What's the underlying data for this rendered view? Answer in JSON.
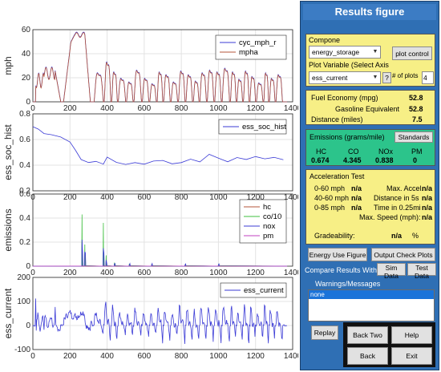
{
  "window": {
    "title": "Results figure"
  },
  "chart_data": [
    {
      "type": "line",
      "ylabel": "mph",
      "xlim": [
        0,
        1400
      ],
      "ylim": [
        0,
        60
      ],
      "xticks": [
        "0",
        "200",
        "400",
        "600",
        "800",
        "1000",
        "1200",
        "1400"
      ],
      "yticks": [
        "0",
        "20",
        "40",
        "60"
      ],
      "legend": [
        "cyc_mph_r",
        "mpha"
      ],
      "legend_position": "top-right",
      "grid": true,
      "series": [
        {
          "name": "cyc_mph_r",
          "color": "#3b3bd6"
        },
        {
          "name": "mpha",
          "color": "#b5553a"
        }
      ]
    },
    {
      "type": "line",
      "ylabel": "ess_soc_hist",
      "xlim": [
        0,
        1400
      ],
      "ylim": [
        0.2,
        0.8
      ],
      "xticks": [
        "0",
        "200",
        "400",
        "600",
        "800",
        "1000",
        "1200",
        "1400"
      ],
      "yticks": [
        "0.2",
        "0.4",
        "0.6",
        "0.8"
      ],
      "legend": [
        "ess_soc_hist"
      ],
      "legend_position": "top-right",
      "grid": true,
      "series": [
        {
          "name": "ess_soc_hist",
          "color": "#3b3bd6",
          "x": [
            0,
            30,
            60,
            100,
            150,
            200,
            230,
            260,
            300,
            340,
            380,
            400,
            450,
            500,
            550,
            600,
            650,
            700,
            750,
            800,
            850,
            900,
            950,
            1000,
            1050,
            1100,
            1150,
            1200,
            1250,
            1300,
            1350
          ],
          "y": [
            0.7,
            0.68,
            0.65,
            0.64,
            0.62,
            0.58,
            0.52,
            0.44,
            0.42,
            0.43,
            0.41,
            0.46,
            0.42,
            0.41,
            0.42,
            0.41,
            0.43,
            0.44,
            0.41,
            0.42,
            0.45,
            0.43,
            0.48,
            0.45,
            0.43,
            0.46,
            0.44,
            0.47,
            0.45,
            0.46,
            0.44
          ]
        }
      ]
    },
    {
      "type": "line",
      "ylabel": "emissions",
      "xlim": [
        0,
        1400
      ],
      "ylim": [
        0,
        0.6
      ],
      "xticks": [
        "0",
        "200",
        "400",
        "600",
        "800",
        "1000",
        "1200",
        "1400"
      ],
      "yticks": [
        "0",
        "0.2",
        "0.4",
        "0.6"
      ],
      "legend": [
        "hc",
        "co/10",
        "nox",
        "pm"
      ],
      "legend_position": "top-right",
      "grid": true,
      "series": [
        {
          "name": "hc",
          "color": "#b5553a"
        },
        {
          "name": "co/10",
          "color": "#3fbf3f"
        },
        {
          "name": "nox",
          "color": "#3b3bd6"
        },
        {
          "name": "pm",
          "color": "#c040c0"
        }
      ]
    },
    {
      "type": "line",
      "ylabel": "ess_current",
      "xlim": [
        0,
        1400
      ],
      "ylim": [
        -100,
        200
      ],
      "xticks": [
        "0",
        "200",
        "400",
        "600",
        "800",
        "1000",
        "1200",
        "1400"
      ],
      "yticks": [
        "-100",
        "0",
        "100",
        "200"
      ],
      "legend": [
        "ess_current"
      ],
      "legend_position": "top-right",
      "grid": true,
      "series": [
        {
          "name": "ess_current",
          "color": "#3b3bd6"
        }
      ]
    }
  ],
  "component": {
    "label": "Compone",
    "value": "energy_storage",
    "plot_control": "plot control"
  },
  "plot_variable": {
    "label": "Plot Variable (Select Axis",
    "value": "ess_current",
    "help": "?",
    "num_plots_label": "# of plots",
    "num_plots": "4"
  },
  "fuel": {
    "economy_label": "Fuel Economy (mpg)",
    "economy_value": "52.8",
    "gas_equiv_label": "Gasoline Equivalent",
    "gas_equiv_value": "52.8",
    "distance_label": "Distance (miles)",
    "distance_value": "7.5"
  },
  "emissions": {
    "title": "Emissions (grams/mile)",
    "standards_button": "Standards",
    "headers": [
      "HC",
      "CO",
      "NOx",
      "PM"
    ],
    "values": [
      "0.674",
      "4.345",
      "0.838",
      "0"
    ]
  },
  "acceleration": {
    "title": "Acceleration Test",
    "rows": [
      {
        "l_label": "0-60 mph",
        "l_value": "n/a",
        "r_label": "Max. Accel.",
        "r_value": "n/a"
      },
      {
        "l_label": "40-60 mph",
        "l_value": "n/a",
        "r_label": "Distance in 5s",
        "r_value": "n/a"
      },
      {
        "l_label": "0-85 mph",
        "l_value": "n/a",
        "r_label": "Time in 0.25mi",
        "r_value": "n/a"
      }
    ],
    "max_speed_label": "Max. Speed (mph):",
    "max_speed_value": "n/a",
    "grade_label": "Gradeability:",
    "grade_value": "n/a",
    "grade_unit": "%"
  },
  "buttons": {
    "energy_use": "Energy Use Figure",
    "output_check": "Output Check Plots",
    "compare_label": "Compare Results With:",
    "sim_data": "Sim Data",
    "test_data": "Test Data",
    "replay": "Replay",
    "back_two": "Back Two",
    "help": "Help",
    "back": "Back",
    "exit": "Exit"
  },
  "warnings": {
    "title": "Warnings/Messages",
    "items": [
      "none"
    ]
  }
}
